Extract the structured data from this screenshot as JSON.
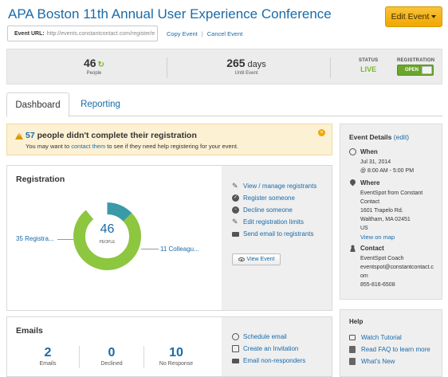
{
  "header": {
    "title": "APA Boston 11th Annual User Experience Conference",
    "edit_label": "Edit Event",
    "event_url_label": "Event URL:",
    "event_url_value": "http://events.constantcontact.com/register/e",
    "copy_label": "Copy Event",
    "cancel_label": "Cancel Event"
  },
  "stats": {
    "people_count": "46",
    "people_label": "People",
    "days_count": "265",
    "days_unit": "days",
    "days_label": "Until Event",
    "status_label": "STATUS",
    "status_value": "LIVE",
    "registration_label": "REGISTRATION",
    "registration_value": "OPEN"
  },
  "tabs": {
    "dashboard": "Dashboard",
    "reporting": "Reporting"
  },
  "alert": {
    "count": "57",
    "head_rest": " people didn't complete their registration",
    "body_pre": "You may want to ",
    "body_link": "contact them",
    "body_post": " to see if they need help registering for your event."
  },
  "registration": {
    "title": "Registration",
    "center_value": "46",
    "center_label": "PEOPLE",
    "left_label": "35 Registra...",
    "right_label": "11 Colleagu...",
    "actions": [
      "View / manage registrants",
      "Register someone",
      "Decline someone",
      "Edit registration limits",
      "Send email to registrants"
    ],
    "view_event": "View Event"
  },
  "chart_data": {
    "type": "pie",
    "categories": [
      "35 Registra...",
      "11 Colleagu..."
    ],
    "values": [
      35,
      11
    ],
    "colors": [
      "#8dc63f",
      "#3a9aa8"
    ]
  },
  "emails": {
    "title": "Emails",
    "stats": [
      {
        "value": "2",
        "label": "Emails"
      },
      {
        "value": "0",
        "label": "Declined"
      },
      {
        "value": "10",
        "label": "No Response"
      }
    ],
    "actions": [
      "Schedule email",
      "Create an Invitation",
      "Email non-responders"
    ]
  },
  "details": {
    "title": "Event Details",
    "edit_label": "(edit)",
    "when_label": "When",
    "when_date": "Jul 31, 2014",
    "when_time": "@ 8:00 AM - 5:00 PM",
    "where_label": "Where",
    "where_line1": "EventSpot from Constant",
    "where_line2": "Contact",
    "where_line3": "1601 Trapelo Rd.",
    "where_line4": "Waltham, MA 02451",
    "where_line5": "US",
    "map_link": "View on map",
    "contact_label": "Contact",
    "contact_name": "EventSpot Coach",
    "contact_email1": "eventspot@constantcontact.c",
    "contact_email2": "om",
    "contact_phone": "855-816-6508"
  },
  "help": {
    "title": "Help",
    "items": [
      "Watch Tutorial",
      "Read FAQ to learn more",
      "What's New"
    ]
  },
  "colors": {
    "link": "#1a6aa8",
    "accent_green": "#8dc63f",
    "accent_teal": "#3a9aa8",
    "button_orange": "#f0a700"
  }
}
